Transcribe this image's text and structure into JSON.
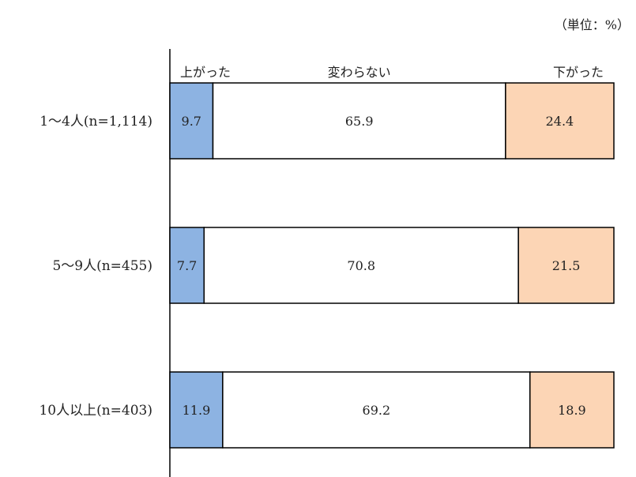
{
  "unit_label": "（単位：%）",
  "chart_data": {
    "type": "bar",
    "orientation": "horizontal",
    "stacked": true,
    "categories": [
      "1～4人(n=1,114)",
      "5～9人(n=455)",
      "10人以上(n=403)"
    ],
    "series": [
      {
        "name": "上がった",
        "values": [
          9.7,
          7.7,
          11.9
        ],
        "color": "#8db3e2"
      },
      {
        "name": "変わらない",
        "values": [
          65.9,
          70.8,
          69.2
        ],
        "color": "#ffffff"
      },
      {
        "name": "下がった",
        "values": [
          24.4,
          21.5,
          18.9
        ],
        "color": "#fcd5b5"
      }
    ],
    "xlim": [
      0,
      100
    ],
    "legend_position": "top"
  }
}
